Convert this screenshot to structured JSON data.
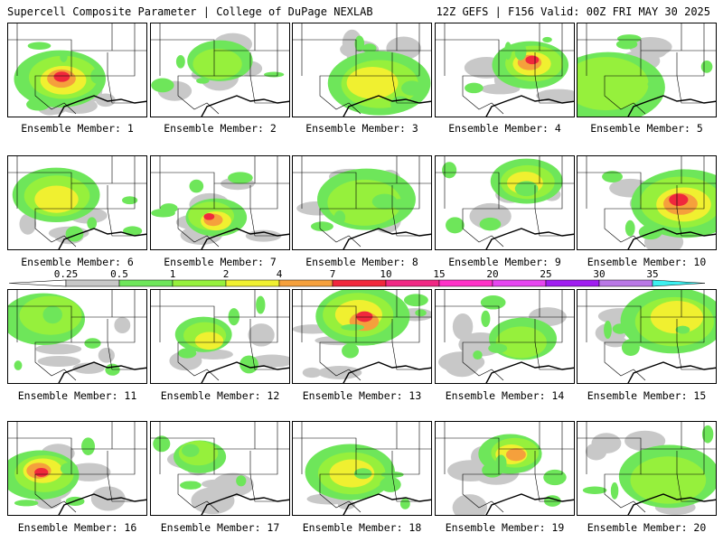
{
  "header": {
    "left": "Supercell Composite Parameter | College of DuPage NEXLAB",
    "right": "12Z GEFS | F156 Valid: 00Z FRI MAY 30 2025"
  },
  "panel_label_prefix": "Ensemble Member: ",
  "colorbar": {
    "labels": [
      "0.25",
      "0.5",
      "1",
      "2",
      "4",
      "7",
      "10",
      "15",
      "20",
      "25",
      "30",
      "35"
    ],
    "colors": [
      "#c8c8c8",
      "#6ee65a",
      "#96f03c",
      "#f0f030",
      "#f5a03c",
      "#f0283c",
      "#f02884",
      "#ff32c8",
      "#e646f0",
      "#a01ef0",
      "#b978e6",
      "#3cf0f0"
    ]
  },
  "panels": [
    {
      "member": "1",
      "label": "Ensemble Member: 1"
    },
    {
      "member": "2",
      "label": "Ensemble Member: 2"
    },
    {
      "member": "3",
      "label": "Ensemble Member: 3"
    },
    {
      "member": "4",
      "label": "Ensemble Member: 4"
    },
    {
      "member": "5",
      "label": "Ensemble Member: 5"
    },
    {
      "member": "6",
      "label": "Ensemble Member: 6"
    },
    {
      "member": "7",
      "label": "Ensemble Member: 7"
    },
    {
      "member": "8",
      "label": "Ensemble Member: 8"
    },
    {
      "member": "9",
      "label": "Ensemble Member: 9"
    },
    {
      "member": "10",
      "label": "Ensemble Member: 10"
    },
    {
      "member": "11",
      "label": "Ensemble Member: 11"
    },
    {
      "member": "12",
      "label": "Ensemble Member: 12"
    },
    {
      "member": "13",
      "label": "Ensemble Member: 13"
    },
    {
      "member": "14",
      "label": "Ensemble Member: 14"
    },
    {
      "member": "15",
      "label": "Ensemble Member: 15"
    },
    {
      "member": "16",
      "label": "Ensemble Member: 16"
    },
    {
      "member": "17",
      "label": "Ensemble Member: 17"
    },
    {
      "member": "18",
      "label": "Ensemble Member: 18"
    },
    {
      "member": "19",
      "label": "Ensemble Member: 19"
    },
    {
      "member": "20",
      "label": "Ensemble Member: 20"
    }
  ]
}
